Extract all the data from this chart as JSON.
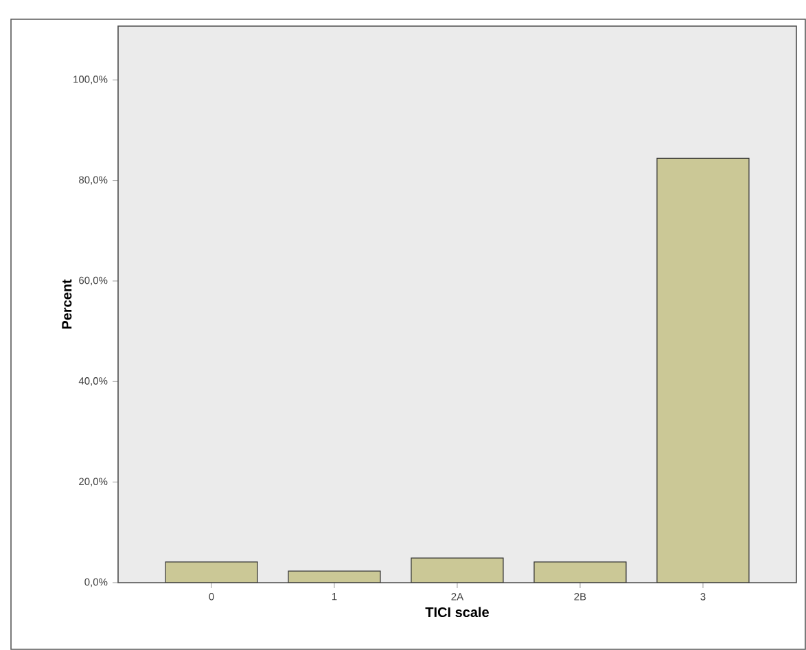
{
  "chart_data": {
    "type": "bar",
    "xlabel": "TICI scale",
    "ylabel": "Percent",
    "categories": [
      "0",
      "1",
      "2A",
      "2B",
      "3"
    ],
    "values": [
      4.1,
      2.3,
      4.9,
      4.1,
      84.4
    ],
    "color": "#cbc896",
    "ylim": [
      0,
      110.7
    ],
    "yticks": [
      {
        "value": 0,
        "label": "0,0%"
      },
      {
        "value": 20,
        "label": "20,0%"
      },
      {
        "value": 40,
        "label": "40,0%"
      },
      {
        "value": 60,
        "label": "60,0%"
      },
      {
        "value": 80,
        "label": "80,0%"
      },
      {
        "value": 100,
        "label": "100,0%"
      }
    ],
    "grid": false
  }
}
